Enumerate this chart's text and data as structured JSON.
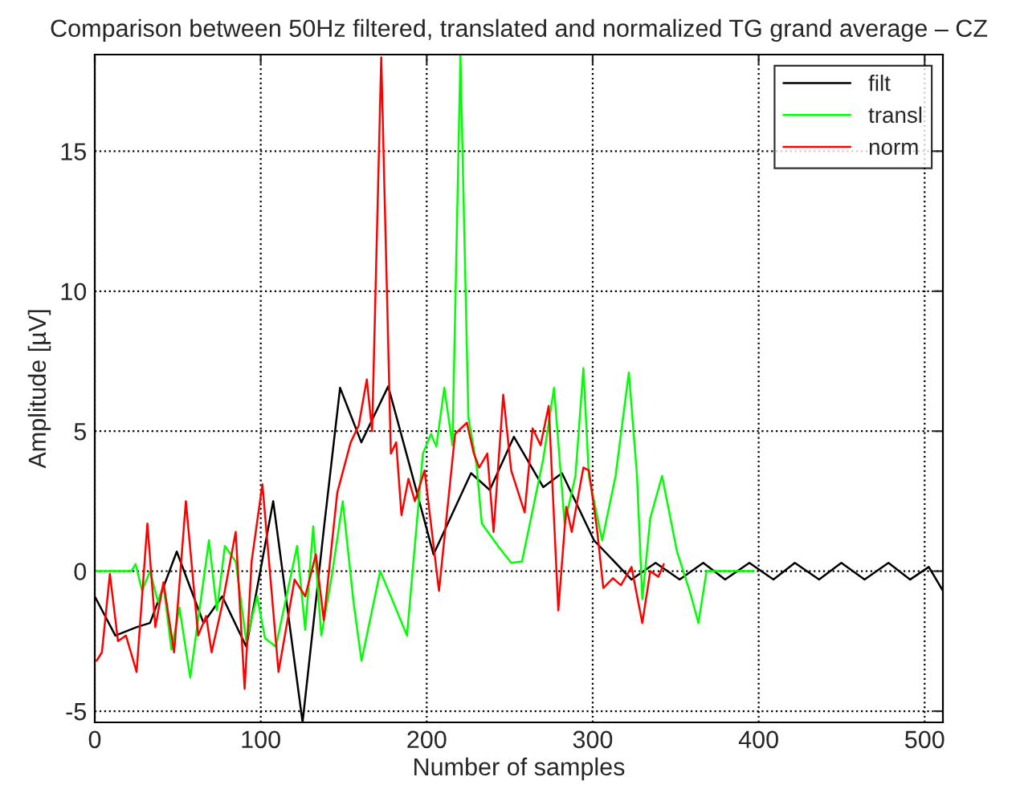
{
  "chart_data": {
    "type": "line",
    "title": "Comparison between 50Hz filtered, translated and normalized TG grand average – CZ",
    "xlabel": "Number of samples",
    "ylabel": "Amplitude [µV]",
    "xlim": [
      0,
      511
    ],
    "ylim": [
      -5.4,
      18.45
    ],
    "xticks": [
      0,
      100,
      200,
      300,
      400,
      500
    ],
    "yticks": [
      -5,
      0,
      5,
      10,
      15
    ],
    "grid": true,
    "legend": "top right",
    "line_style": "solid",
    "marker": "none",
    "series": [
      {
        "name": "filt",
        "color": "#000000",
        "x": [
          0,
          12.4,
          25.2,
          33.3,
          49.4,
          65.5,
          76.8,
          91.3,
          107.5,
          125.2,
          138,
          147.8,
          160.6,
          176.8,
          189.6,
          204.1,
          226.7,
          238,
          252.5,
          270.2,
          281.5,
          300.8,
          323.4,
          337.9,
          352.4,
          366.6,
          379.8,
          394.4,
          408.9,
          421.8,
          436.4,
          449.8,
          463.8,
          478.2,
          491.2,
          502.5,
          511
        ],
        "values": [
          -0.9,
          -2.3,
          -2.0,
          -1.85,
          0.7,
          -1.85,
          -0.9,
          -2.7,
          2.5,
          -5.4,
          1.5,
          6.55,
          4.6,
          6.6,
          3.8,
          0.6,
          3.5,
          2.9,
          4.8,
          3.0,
          3.5,
          1.1,
          -0.3,
          0.3,
          -0.3,
          0.3,
          -0.3,
          0.3,
          -0.3,
          0.3,
          -0.3,
          0.3,
          -0.3,
          0.3,
          -0.3,
          0.15,
          -0.7
        ]
      },
      {
        "name": "transl",
        "color": "#00ff00",
        "x": [
          0,
          22,
          24.6,
          28.5,
          33.3,
          38.1,
          41.4,
          46.2,
          51.0,
          57.5,
          68.8,
          73.6,
          78.4,
          84.9,
          91.3,
          97.8,
          102.6,
          109.1,
          121.9,
          126.8,
          131.6,
          136.5,
          143.0,
          149.4,
          155.9,
          160.7,
          172,
          178.4,
          188.1,
          197.7,
          202.6,
          205.8,
          210.6,
          215.5,
          220.3,
          225.1,
          230,
          233.2,
          242.9,
          250.9,
          257.4,
          270.2,
          276.7,
          283.1,
          289.6,
          294.4,
          297.7,
          305.7,
          313.8,
          321.8,
          326.7,
          329.9,
          334.7,
          341.8,
          350.8,
          358.9,
          363.7,
          368.6,
          397
        ],
        "values": [
          0,
          0,
          0.25,
          -0.7,
          0,
          -1.1,
          -0.5,
          -2.8,
          -1.3,
          -3.8,
          1.1,
          -1.4,
          0.9,
          0.35,
          -2.5,
          -0.9,
          -2.4,
          -2.7,
          0.9,
          -2.1,
          1.6,
          -2.3,
          -0.1,
          2.5,
          -1.1,
          -3.2,
          0,
          -0.9,
          -2.3,
          4.2,
          4.9,
          4.45,
          6.55,
          4.5,
          18.4,
          5.5,
          3.8,
          1.7,
          0.9,
          0.3,
          0.35,
          4.0,
          6.55,
          1.7,
          3.4,
          7.25,
          3.4,
          1.1,
          3.4,
          7.1,
          3.4,
          -1.0,
          1.9,
          3.4,
          0.7,
          -0.8,
          -1.85,
          0,
          0
        ]
      },
      {
        "name": "norm",
        "color": "#ff0000",
        "x": [
          1.1,
          4.3,
          9.1,
          14,
          18.8,
          25.2,
          31.7,
          36.5,
          41.4,
          47.8,
          54.9,
          62.3,
          67.1,
          70.4,
          76.8,
          84.9,
          90.3,
          94.5,
          101,
          110.7,
          120.4,
          126.8,
          133.2,
          138,
          146.1,
          154.2,
          159,
          163.9,
          167.1,
          172.6,
          178.4,
          181.6,
          184.8,
          189,
          192.9,
          198.7,
          207.4,
          217.1,
          224.2,
          228.4,
          231.6,
          236.5,
          240.3,
          246.1,
          250.9,
          259,
          263.8,
          268.6,
          273.5,
          279.3,
          284.1,
          287.4,
          294.4,
          297.7,
          302.6,
          306.4,
          312.2,
          317,
          323.4,
          329.9,
          334.7,
          339.6,
          342.8
        ],
        "values": [
          -3.2,
          -2.9,
          -0.1,
          -2.5,
          -2.3,
          -3.6,
          1.7,
          -2.0,
          -0.4,
          -2.9,
          2.5,
          -2.3,
          -1.6,
          -2.9,
          -1.2,
          1.4,
          -4.2,
          0.35,
          3.1,
          -3.6,
          -0.3,
          -0.9,
          0.6,
          -1.75,
          2.8,
          4.6,
          5.2,
          6.85,
          5.0,
          18.35,
          4.2,
          4.6,
          2.0,
          3.3,
          2.5,
          3.6,
          -0.7,
          4.9,
          5.3,
          4.2,
          3.7,
          4.2,
          1.4,
          6.3,
          3.6,
          2.1,
          5.1,
          4.5,
          5.9,
          -1.4,
          2.3,
          1.4,
          3.7,
          3.6,
          1.5,
          -0.6,
          -0.25,
          -0.5,
          0.15,
          -1.85,
          0,
          -0.2,
          0.25
        ]
      }
    ]
  }
}
